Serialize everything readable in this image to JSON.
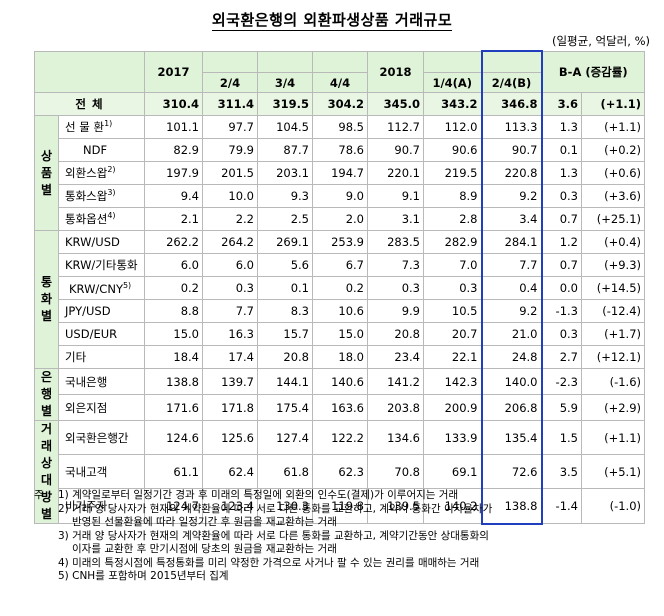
{
  "title": "외국환은행의 외환파생상품 거래규모",
  "unit": "(일평균, 억달러, %)",
  "header": {
    "y2017": "2017",
    "q2": "2/4",
    "q3": "3/4",
    "q4": "4/4",
    "y2018": "2018",
    "q1a": "1/4(A)",
    "q2b": "2/4(B)",
    "diff": "B-A (증감률)"
  },
  "total": {
    "label": "전   체",
    "values": [
      "310.4",
      "311.4",
      "319.5",
      "304.2",
      "345.0",
      "343.2",
      "346.8",
      "3.6",
      "(+1.1)"
    ]
  },
  "groups": {
    "product": "상\n품\n별",
    "currency": "통\n화\n별",
    "bank": "은\n행\n별",
    "counterparty": "거\n래\n상\n대\n방\n별"
  },
  "product_rows": [
    {
      "label": "선 물 환",
      "sup": "1)",
      "values": [
        "101.1",
        "97.7",
        "104.5",
        "98.5",
        "112.7",
        "112.0",
        "113.3",
        "1.3",
        "(+1.1)"
      ]
    },
    {
      "label": "NDF",
      "sup": "",
      "values": [
        "82.9",
        "79.9",
        "87.7",
        "78.6",
        "90.7",
        "90.6",
        "90.7",
        "0.1",
        "(+0.2)"
      ]
    },
    {
      "label": "외환스왑",
      "sup": "2)",
      "values": [
        "197.9",
        "201.5",
        "203.1",
        "194.7",
        "220.1",
        "219.5",
        "220.8",
        "1.3",
        "(+0.6)"
      ]
    },
    {
      "label": "통화스왑",
      "sup": "3)",
      "values": [
        "9.4",
        "10.0",
        "9.3",
        "9.0",
        "9.1",
        "8.9",
        "9.2",
        "0.3",
        "(+3.6)"
      ]
    },
    {
      "label": "통화옵션",
      "sup": "4)",
      "values": [
        "2.1",
        "2.2",
        "2.5",
        "2.0",
        "3.1",
        "2.8",
        "3.4",
        "0.7",
        "(+25.1)"
      ]
    }
  ],
  "currency_rows": [
    {
      "label": "KRW/USD",
      "sup": "",
      "values": [
        "262.2",
        "264.2",
        "269.1",
        "253.9",
        "283.5",
        "282.9",
        "284.1",
        "1.2",
        "(+0.4)"
      ]
    },
    {
      "label": "KRW/기타통화",
      "sup": "",
      "values": [
        "6.0",
        "6.0",
        "5.6",
        "6.7",
        "7.3",
        "7.0",
        "7.7",
        "0.7",
        "(+9.3)"
      ]
    },
    {
      "label": "KRW/CNY",
      "sup": "5)",
      "values": [
        "0.2",
        "0.3",
        "0.1",
        "0.2",
        "0.3",
        "0.3",
        "0.4",
        "0.0",
        "(+14.5)"
      ]
    },
    {
      "label": "JPY/USD",
      "sup": "",
      "values": [
        "8.8",
        "7.7",
        "8.3",
        "10.6",
        "9.9",
        "10.5",
        "9.2",
        "-1.3",
        "(-12.4)"
      ]
    },
    {
      "label": "USD/EUR",
      "sup": "",
      "values": [
        "15.0",
        "16.3",
        "15.7",
        "15.0",
        "20.8",
        "20.7",
        "21.0",
        "0.3",
        "(+1.7)"
      ]
    },
    {
      "label": "기타",
      "sup": "",
      "values": [
        "18.4",
        "17.4",
        "20.8",
        "18.0",
        "23.4",
        "22.1",
        "24.8",
        "2.7",
        "(+12.1)"
      ]
    }
  ],
  "bank_rows": [
    {
      "label": "국내은행",
      "sup": "",
      "values": [
        "138.8",
        "139.7",
        "144.1",
        "140.6",
        "141.2",
        "142.3",
        "140.0",
        "-2.3",
        "(-1.6)"
      ]
    },
    {
      "label": "외은지점",
      "sup": "",
      "values": [
        "171.6",
        "171.8",
        "175.4",
        "163.6",
        "203.8",
        "200.9",
        "206.8",
        "5.9",
        "(+2.9)"
      ]
    }
  ],
  "counterparty_rows": [
    {
      "label": "외국환은행간",
      "sup": "",
      "values": [
        "124.6",
        "125.6",
        "127.4",
        "122.2",
        "134.6",
        "133.9",
        "135.4",
        "1.5",
        "(+1.1)"
      ]
    },
    {
      "label": "국내고객",
      "sup": "",
      "values": [
        "61.1",
        "62.4",
        "61.8",
        "62.3",
        "70.8",
        "69.1",
        "72.6",
        "3.5",
        "(+5.1)"
      ]
    },
    {
      "label": "비거주자",
      "sup": "",
      "values": [
        "124.7",
        "123.4",
        "130.3",
        "119.8",
        "139.5",
        "140.2",
        "138.8",
        "-1.4",
        "(-1.0)"
      ]
    }
  ],
  "notes": {
    "prefix": "주 :",
    "items": [
      {
        "num": "1)",
        "lines": [
          "계약일로부터 일정기간 경과 후 미래의 특정일에 외환의 인수도(결제)가 이루어지는 거래"
        ]
      },
      {
        "num": "2)",
        "lines": [
          "거래 양 당사자가 현재의 계약환율에 따라 서로 다른 통화를 교환하고, 계약시 통화간 이자율차가",
          "반영된 선물환율에 따라 일정기간 후 원금을 재교환하는 거래"
        ]
      },
      {
        "num": "3)",
        "lines": [
          "거래 양 당사자가 현재의 계약환율에 따라 서로 다른 통화를 교환하고, 계약기간동안 상대통화의",
          "이자를 교환한 후 만기시점에 당초의 원금을 재교환하는 거래"
        ]
      },
      {
        "num": "4)",
        "lines": [
          "미래의 특정시점에 특정통화를 미리 약정한 가격으로 사거나 팔 수 있는 권리를 매매하는 거래"
        ]
      },
      {
        "num": "5)",
        "lines": [
          "CNH를 포함하며 2015년부터 집계"
        ]
      }
    ]
  }
}
